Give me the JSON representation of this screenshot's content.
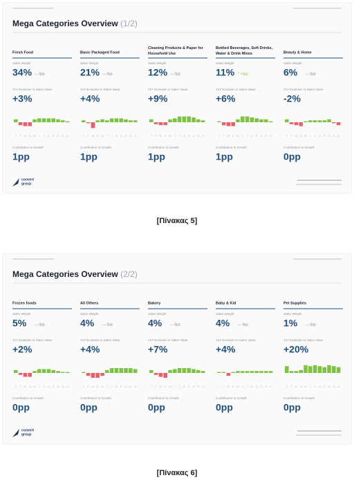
{
  "labels": {
    "sales_weight": "Sales Weight",
    "yoy": "YoY Evolution in Sales Value",
    "contribution": "Contribution to Growth",
    "logo_1": "convert",
    "logo_2": "group"
  },
  "months": [
    "J",
    "F",
    "M",
    "A",
    "M",
    "J",
    "J",
    "A",
    "S",
    "O",
    "N",
    "D"
  ],
  "slides": [
    {
      "title": "Mega Categories Overview",
      "page": "(1/2)",
      "caption": "[Πίνακας 5]",
      "bar_ylim": [
        -20,
        20
      ],
      "columns": [
        {
          "name": "Fresh Food",
          "weight": "34%",
          "weight_change": "— 0pp",
          "yoy": "+3%",
          "contribution": "1pp",
          "bars": [
            6,
            -6,
            -8,
            -8,
            6,
            8,
            8,
            8,
            8,
            6,
            4,
            2
          ]
        },
        {
          "name": "Basic Packaged Food",
          "weight": "21%",
          "weight_change": "— 0pp",
          "yoy": "+4%",
          "contribution": "1pp",
          "bars": [
            4,
            -2,
            -12,
            4,
            6,
            4,
            8,
            8,
            8,
            6,
            4,
            4
          ]
        },
        {
          "name": "Cleaning Products & Paper for Household Use",
          "weight": "12%",
          "weight_change": "— 0pp",
          "yoy": "+9%",
          "contribution": "1pp",
          "bars": [
            6,
            -4,
            -6,
            -6,
            6,
            8,
            12,
            12,
            12,
            10,
            6,
            4
          ]
        },
        {
          "name": "Bottled Beverages, Soft Drinks, Water & Drink Mixes",
          "weight": "11%",
          "weight_change": "^ +1pp",
          "yoy": "+6%",
          "contribution": "1pp",
          "bars": [
            2,
            -6,
            -8,
            -8,
            6,
            12,
            12,
            10,
            8,
            6,
            6,
            2
          ]
        },
        {
          "name": "Beauty & Home",
          "weight": "6%",
          "weight_change": "— 0pp",
          "yoy": "-2%",
          "contribution": "0pp",
          "bars": [
            6,
            -4,
            -6,
            -8,
            2,
            4,
            4,
            4,
            4,
            6,
            -2,
            -6
          ]
        }
      ]
    },
    {
      "title": "Mega Categories Overview",
      "page": "(2/2)",
      "caption": "[Πίνακας 6]",
      "bar_ylim": [
        -20,
        20
      ],
      "columns": [
        {
          "name": "Frozen foods",
          "weight": "5%",
          "weight_change": "— 0pp",
          "yoy": "+2%",
          "contribution": "0pp",
          "bars": [
            6,
            -4,
            -8,
            -8,
            4,
            8,
            8,
            8,
            6,
            4,
            2,
            2
          ]
        },
        {
          "name": "All Others",
          "weight": "4%",
          "weight_change": "— 0pp",
          "yoy": "+4%",
          "contribution": "0pp",
          "bars": [
            2,
            -6,
            -10,
            -10,
            -6,
            6,
            10,
            10,
            10,
            10,
            10,
            8
          ]
        },
        {
          "name": "Bakery",
          "weight": "4%",
          "weight_change": "— 0pp",
          "yoy": "+7%",
          "contribution": "0pp",
          "bars": [
            6,
            -4,
            -8,
            -10,
            6,
            8,
            10,
            10,
            10,
            8,
            6,
            4
          ]
        },
        {
          "name": "Baby & Kid",
          "weight": "4%",
          "weight_change": "— 0pp",
          "yoy": "+4%",
          "contribution": "0pp",
          "bars": [
            2,
            2,
            -6,
            2,
            4,
            4,
            4,
            4,
            4,
            4,
            4,
            4
          ]
        },
        {
          "name": "Pet Supplies",
          "weight": "1%",
          "weight_change": "— 0pp",
          "yoy": "+20%",
          "contribution": "0pp",
          "bars": [
            14,
            4,
            4,
            6,
            16,
            14,
            16,
            14,
            12,
            16,
            14,
            12
          ]
        }
      ]
    }
  ]
}
